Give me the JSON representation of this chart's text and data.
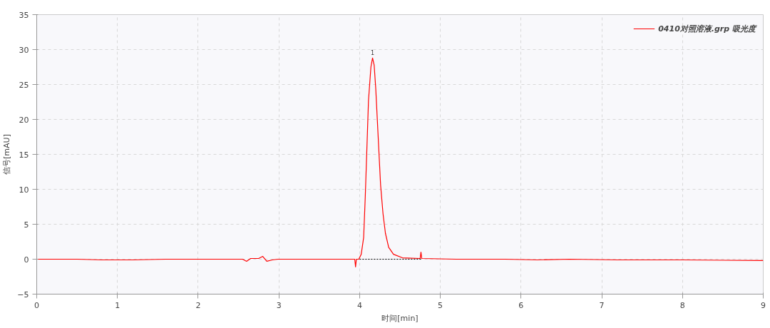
{
  "chart_data": {
    "type": "line",
    "xlabel": "时间[min]",
    "ylabel": "信号[mAU]",
    "xlim": [
      0,
      9
    ],
    "ylim": [
      -5,
      35
    ],
    "xticks": [
      0,
      1,
      2,
      3,
      4,
      5,
      6,
      7,
      8,
      9
    ],
    "yticks": [
      -5,
      0,
      5,
      10,
      15,
      20,
      25,
      30,
      35
    ],
    "grid": true,
    "legend": "top right",
    "annotations": [
      {
        "text": "1",
        "x": 4.16,
        "y": 28.8
      }
    ],
    "series": [
      {
        "name": "0410对照溶液.grp 吸光度",
        "color": "#ff0000",
        "line_style": "solid",
        "x": [
          0,
          0.5,
          0.8,
          1.2,
          1.6,
          2.0,
          2.4,
          2.55,
          2.6,
          2.65,
          2.75,
          2.8,
          2.85,
          2.92,
          2.99,
          3.5,
          3.94,
          3.95,
          3.96,
          3.99,
          4.02,
          4.05,
          4.07,
          4.09,
          4.11,
          4.14,
          4.16,
          4.18,
          4.2,
          4.23,
          4.26,
          4.29,
          4.32,
          4.36,
          4.42,
          4.53,
          4.75,
          4.76,
          4.77,
          5.2,
          5.8,
          6.2,
          6.6,
          7.2,
          8.0,
          9.0
        ],
        "values": [
          0,
          0,
          -0.1,
          -0.1,
          0,
          0,
          0,
          0,
          -0.3,
          0.1,
          0.1,
          0.4,
          -0.3,
          -0.1,
          0,
          0,
          0,
          -1.1,
          0,
          0,
          0.7,
          3.1,
          8.9,
          15.8,
          22.7,
          27.5,
          28.8,
          27.8,
          24.4,
          17.5,
          10.6,
          6.5,
          3.7,
          1.7,
          0.7,
          0.2,
          0.1,
          1.0,
          0.1,
          0,
          0,
          -0.1,
          0,
          -0.1,
          -0.1,
          -0.2
        ]
      },
      {
        "color": "#000000",
        "line_style": "dotted",
        "x": [
          4.0,
          4.77
        ],
        "values": [
          0,
          0
        ]
      }
    ]
  }
}
